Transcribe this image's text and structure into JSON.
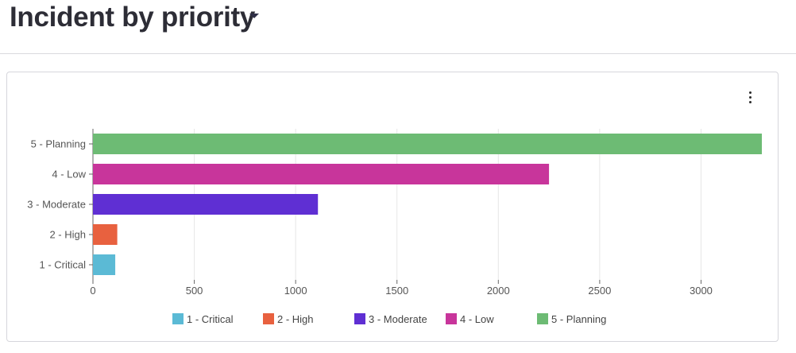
{
  "page": {
    "title": "Incident by priority"
  },
  "chart_data": {
    "type": "bar",
    "orientation": "horizontal",
    "title": "",
    "xlabel": "",
    "ylabel": "",
    "categories": [
      "5 - Planning",
      "4 - Low",
      "3 - Moderate",
      "2 - High",
      "1 - Critical"
    ],
    "values": [
      3300,
      2250,
      1110,
      120,
      110
    ],
    "xlim": [
      0,
      3300
    ],
    "xticks": [
      0,
      500,
      1000,
      1500,
      2000,
      2500,
      3000
    ],
    "grid": true,
    "legend_position": "bottom",
    "colors": {
      "1 - Critical": "#5bbad5",
      "2 - High": "#e8613f",
      "3 - Moderate": "#5f2fd3",
      "4 - Low": "#c8359b",
      "5 - Planning": "#6dbb74"
    },
    "legend": [
      "1 - Critical",
      "2 - High",
      "3 - Moderate",
      "4 - Low",
      "5 - Planning"
    ]
  },
  "icons": {
    "title_dropdown": "caret-down-icon",
    "menu": "more-vertical-icon"
  }
}
